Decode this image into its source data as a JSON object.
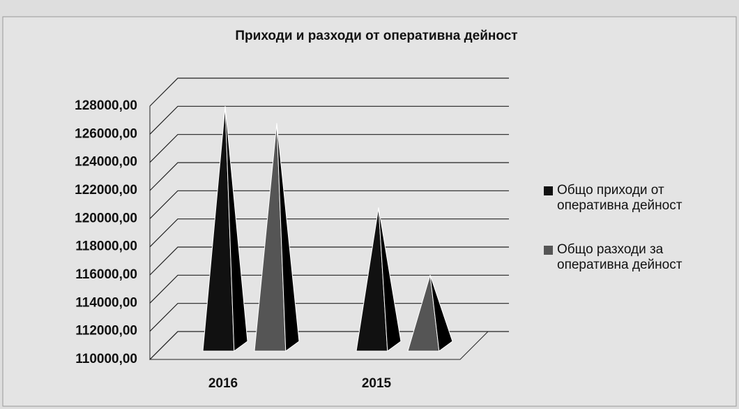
{
  "chart_data": {
    "type": "pyramid",
    "title": "Приходи и разходи от оперативна дейност",
    "categories": [
      "2016",
      "2015"
    ],
    "series": [
      {
        "name": "Общо приходи от оперативна дейност",
        "color": "#111111",
        "values": [
          127000,
          119800
        ]
      },
      {
        "name": "Общо разходи за оперативна дейност",
        "color": "#555555",
        "values": [
          125800,
          115000
        ]
      }
    ],
    "ylim": [
      110000,
      128000
    ],
    "yticks": [
      {
        "value": 110000,
        "label": "110000,00"
      },
      {
        "value": 112000,
        "label": "112000,00"
      },
      {
        "value": 114000,
        "label": "114000,00"
      },
      {
        "value": 116000,
        "label": "116000,00"
      },
      {
        "value": 118000,
        "label": "118000,00"
      },
      {
        "value": 120000,
        "label": "120000,00"
      },
      {
        "value": 122000,
        "label": "122000,00"
      },
      {
        "value": 124000,
        "label": "124000,00"
      },
      {
        "value": 126000,
        "label": "126000,00"
      },
      {
        "value": 128000,
        "label": "128000,00"
      }
    ],
    "grid": true,
    "legend": "right"
  }
}
